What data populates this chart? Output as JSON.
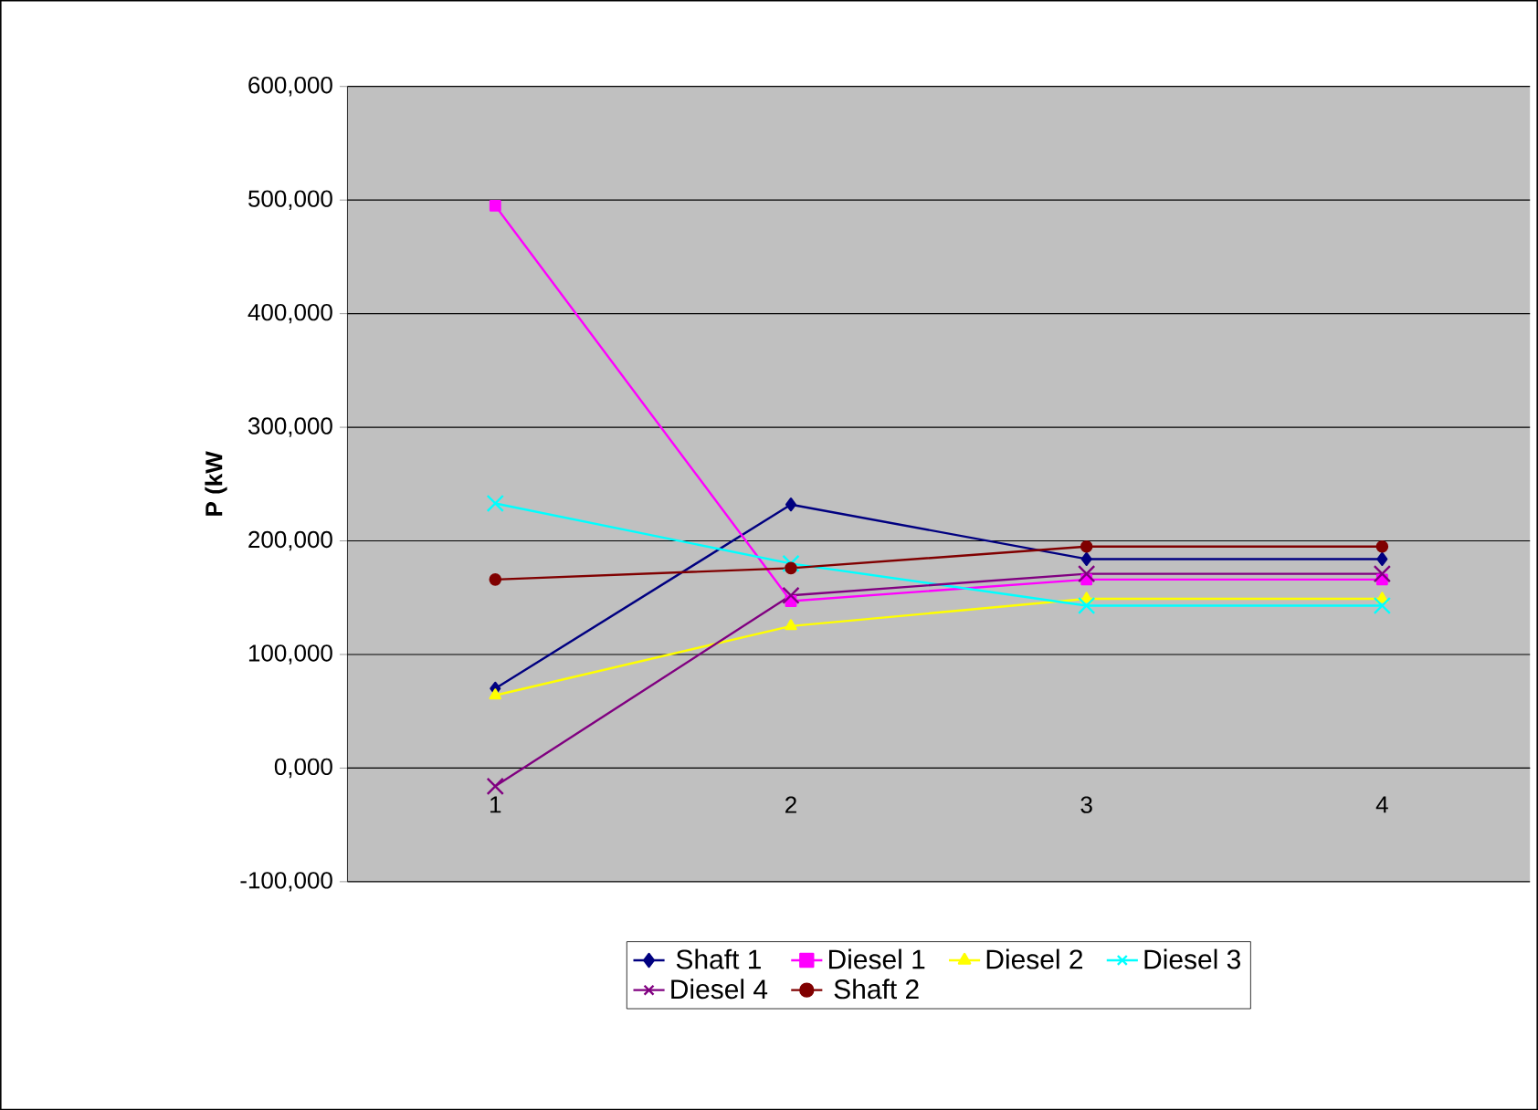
{
  "chart_data": {
    "type": "line",
    "ylabel": "P (kW",
    "categories": [
      "1",
      "2",
      "3",
      "4"
    ],
    "series": [
      {
        "name": "Shaft 1",
        "color": "#000080",
        "marker": "diamond",
        "values": [
          70000,
          232000,
          184000,
          184000
        ]
      },
      {
        "name": "Diesel 1",
        "color": "#ff00ff",
        "marker": "square",
        "values": [
          495000,
          147000,
          166000,
          166000
        ]
      },
      {
        "name": "Diesel 2",
        "color": "#ffff00",
        "marker": "triangle",
        "values": [
          64000,
          125000,
          149000,
          149000
        ]
      },
      {
        "name": "Diesel 3",
        "color": "#00ffff",
        "marker": "cross",
        "values": [
          233000,
          180000,
          143000,
          143000
        ]
      },
      {
        "name": "Diesel 4",
        "color": "#800080",
        "marker": "cross",
        "values": [
          -16000,
          152000,
          171000,
          171000
        ]
      },
      {
        "name": "Shaft 2",
        "color": "#800000",
        "marker": "circle",
        "values": [
          166000,
          176000,
          195000,
          195000
        ]
      }
    ],
    "ylim": [
      -100000,
      600000
    ],
    "yticks": [
      {
        "value": -100000,
        "label": "-100,000"
      },
      {
        "value": 0,
        "label": "0,000"
      },
      {
        "value": 100000,
        "label": "100,000"
      },
      {
        "value": 200000,
        "label": "200,000"
      },
      {
        "value": 300000,
        "label": "300,000"
      },
      {
        "value": 400000,
        "label": "400,000"
      },
      {
        "value": 500000,
        "label": "500,000"
      },
      {
        "value": 600000,
        "label": "600,000"
      }
    ],
    "grid": "y",
    "legend": "bottom"
  }
}
